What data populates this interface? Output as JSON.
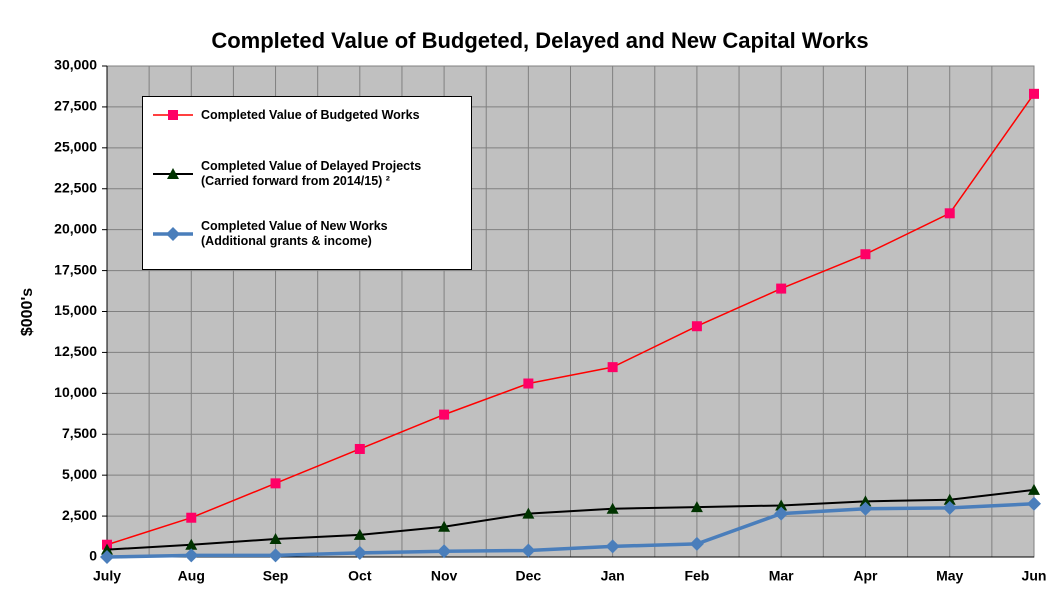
{
  "chart_data": {
    "type": "line",
    "title": "Completed Value of Budgeted, Delayed and New Capital Works",
    "y_label": "$000's",
    "categories": [
      "July",
      "Aug",
      "Sep",
      "Oct",
      "Nov",
      "Dec",
      "Jan",
      "Feb",
      "Mar",
      "Apr",
      "May",
      "Jun"
    ],
    "series": [
      {
        "name": "Completed Value of Budgeted Works",
        "color": "#ff0000",
        "marker": "square",
        "marker_color": "#ff0066",
        "values": [
          750,
          2400,
          4500,
          6600,
          8700,
          10600,
          11600,
          14100,
          16400,
          18500,
          21000,
          28300
        ]
      },
      {
        "name": "Completed Value of Delayed Projects\n(Carried forward from 2014/15) ²",
        "color": "#000000",
        "marker": "triangle",
        "marker_color": "#003300",
        "values": [
          450,
          750,
          1100,
          1350,
          1850,
          2650,
          2950,
          3050,
          3150,
          3400,
          3500,
          4100
        ]
      },
      {
        "name": "Completed Value of New Works\n(Additional grants & income)",
        "color": "#4a7ebb",
        "marker": "diamond",
        "marker_color": "#4a7ebb",
        "values": [
          0,
          100,
          100,
          250,
          350,
          400,
          650,
          800,
          2650,
          2950,
          3000,
          3250
        ]
      }
    ],
    "ylim": [
      0,
      30000
    ],
    "yticks": [
      0,
      {
        "value": 2500,
        "label": "2,500"
      },
      {
        "value": 5000,
        "label": "5,000"
      },
      {
        "value": 7500,
        "label": "7,500"
      },
      {
        "value": 10000,
        "label": "10,000"
      },
      {
        "value": 12500,
        "label": "12,500"
      },
      {
        "value": 15000,
        "label": "15,000"
      },
      {
        "value": 17500,
        "label": "17,500"
      },
      {
        "value": 20000,
        "label": "20,000"
      },
      {
        "value": 22500,
        "label": "22,500"
      },
      {
        "value": 25000,
        "label": "25,000"
      },
      {
        "value": 27500,
        "label": "27,500"
      },
      {
        "value": 30000,
        "label": "30,000"
      }
    ],
    "grid": true,
    "legend": "upper left"
  }
}
